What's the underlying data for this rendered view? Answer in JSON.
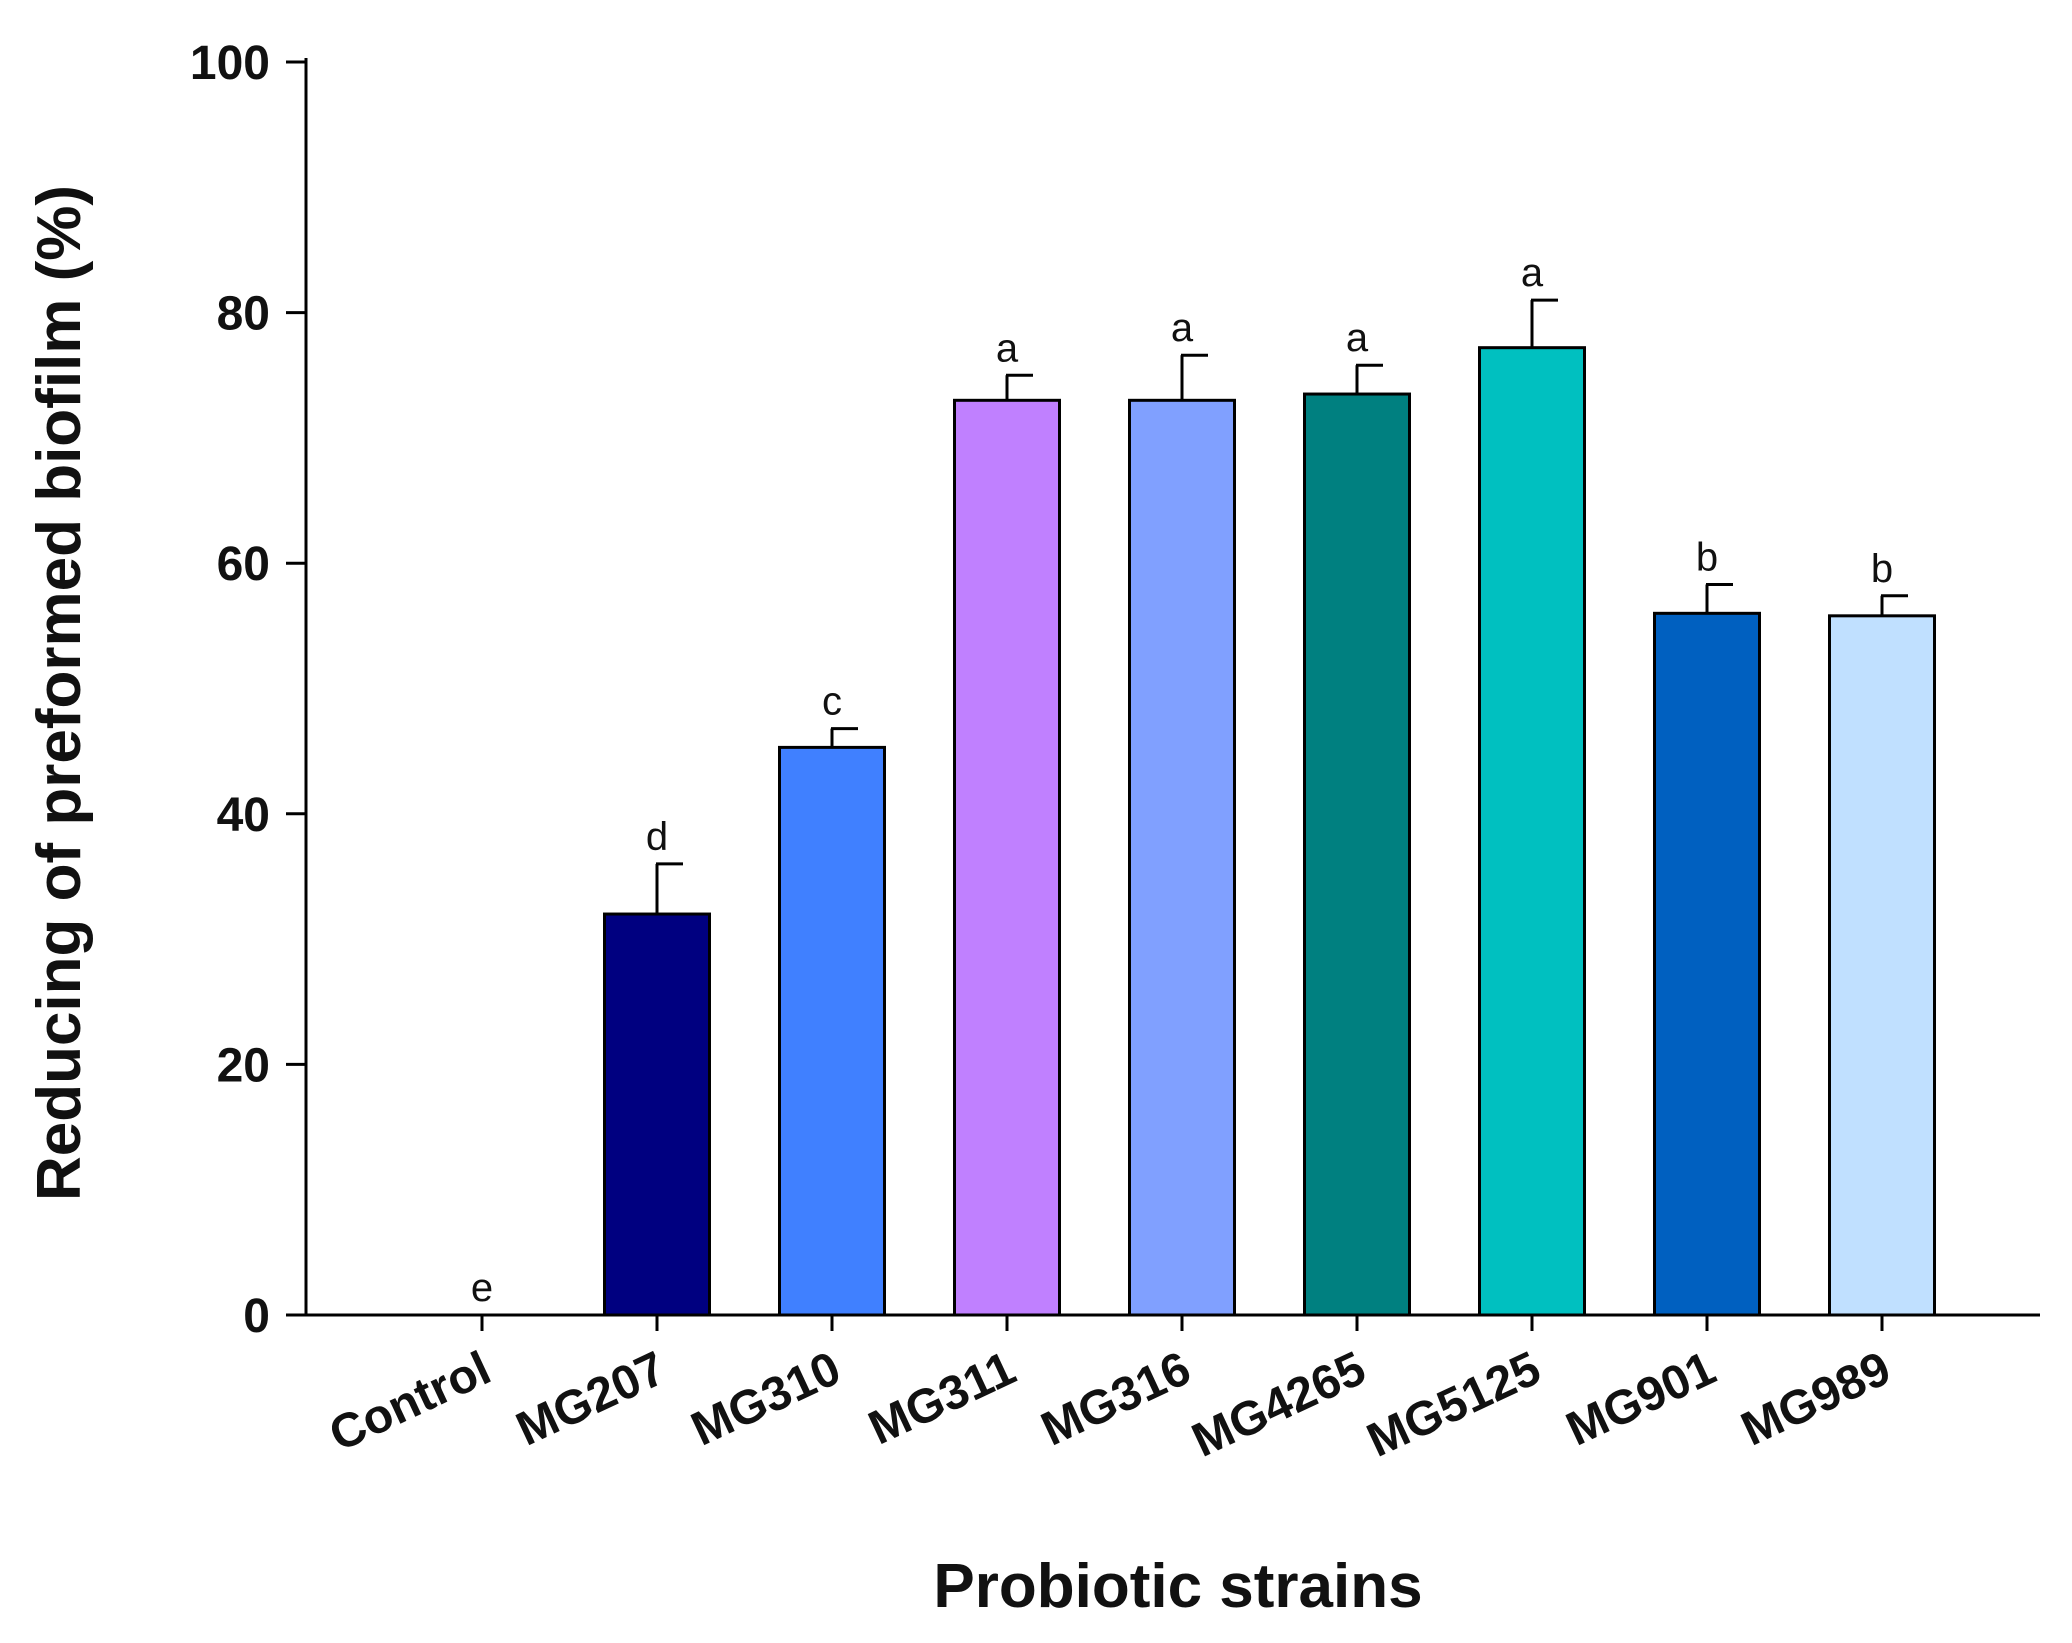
{
  "chart_data": {
    "type": "bar",
    "title": "",
    "xlabel": "Probiotic strains",
    "ylabel": "Reducing of preformed biofilm (%)",
    "ylim": [
      0,
      100
    ],
    "yticks": [
      0,
      20,
      40,
      60,
      80,
      100
    ],
    "grid": false,
    "categories": [
      "Control",
      "MG207",
      "MG310",
      "MG311",
      "MG316",
      "MG4265",
      "MG5125",
      "MG901",
      "MG989"
    ],
    "values": [
      0,
      32,
      45.3,
      73,
      73,
      73.5,
      77.2,
      56,
      55.8
    ],
    "errors": [
      0,
      4,
      1.5,
      2,
      3.6,
      2.3,
      3.8,
      2.3,
      1.6
    ],
    "significance": [
      "e",
      "d",
      "c",
      "a",
      "a",
      "a",
      "a",
      "b",
      "b"
    ],
    "colors": [
      "#ffffff",
      "#000080",
      "#4080ff",
      "#c080ff",
      "#80a0ff",
      "#008080",
      "#00c0c0",
      "#0060c0",
      "#c0e0ff"
    ]
  }
}
